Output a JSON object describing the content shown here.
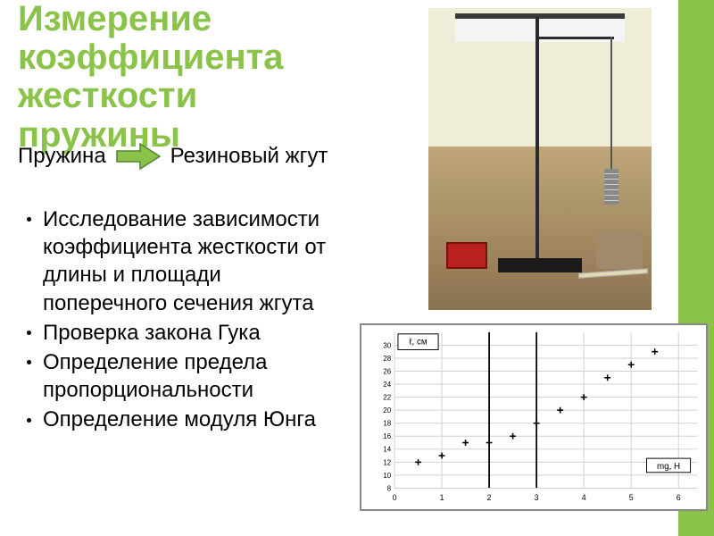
{
  "title": "Измерение коэффициента жесткости пружины",
  "arrow_row": {
    "left": "Пружина",
    "right": "Резиновый жгут"
  },
  "arrow_style": {
    "fill": "#8bc34a",
    "stroke": "#548235",
    "stroke_width": 1.5
  },
  "bullets": [
    "Исследование зависимости коэффициента жесткости от длины и площади поперечного сечения жгута",
    "Проверка закона Гука",
    "Определение предела пропорциональности",
    "Определение модуля Юнга"
  ],
  "colors": {
    "accent": "#8bc34a",
    "text": "#000000",
    "background": "#ffffff",
    "chart_border": "#888888",
    "grid_minor": "#d0d0d0",
    "grid_major": "#000000",
    "marker": "#000000"
  },
  "photo_desc": "Лабораторная установка: штатив с грузами, линейка, резиновый жгут на деревянном столе",
  "chart": {
    "type": "scatter",
    "y_label": "ℓ, см",
    "y_label_fontsize": 10,
    "x_label": "mg, H",
    "x_label_fontsize": 10,
    "xlim": [
      0,
      6.4
    ],
    "ylim": [
      8,
      32
    ],
    "xticks": [
      0,
      1,
      2,
      3,
      4,
      5,
      6
    ],
    "yticks_left": [
      8,
      10,
      12,
      14,
      16,
      18,
      20,
      22,
      24,
      26,
      28,
      30
    ],
    "vlines_major": [
      2,
      3
    ],
    "points": [
      {
        "x": 0.5,
        "y": 12
      },
      {
        "x": 1.0,
        "y": 13
      },
      {
        "x": 1.5,
        "y": 15
      },
      {
        "x": 2.0,
        "y": 15
      },
      {
        "x": 2.5,
        "y": 16
      },
      {
        "x": 3.0,
        "y": 18
      },
      {
        "x": 3.5,
        "y": 20
      },
      {
        "x": 4.0,
        "y": 22
      },
      {
        "x": 4.5,
        "y": 25
      },
      {
        "x": 5.0,
        "y": 27
      },
      {
        "x": 5.5,
        "y": 29
      }
    ],
    "marker": "plus",
    "marker_size": 7,
    "background_color": "#ffffff",
    "grid_minor_color": "#d0d0d0",
    "grid_major_color": "#000000"
  }
}
